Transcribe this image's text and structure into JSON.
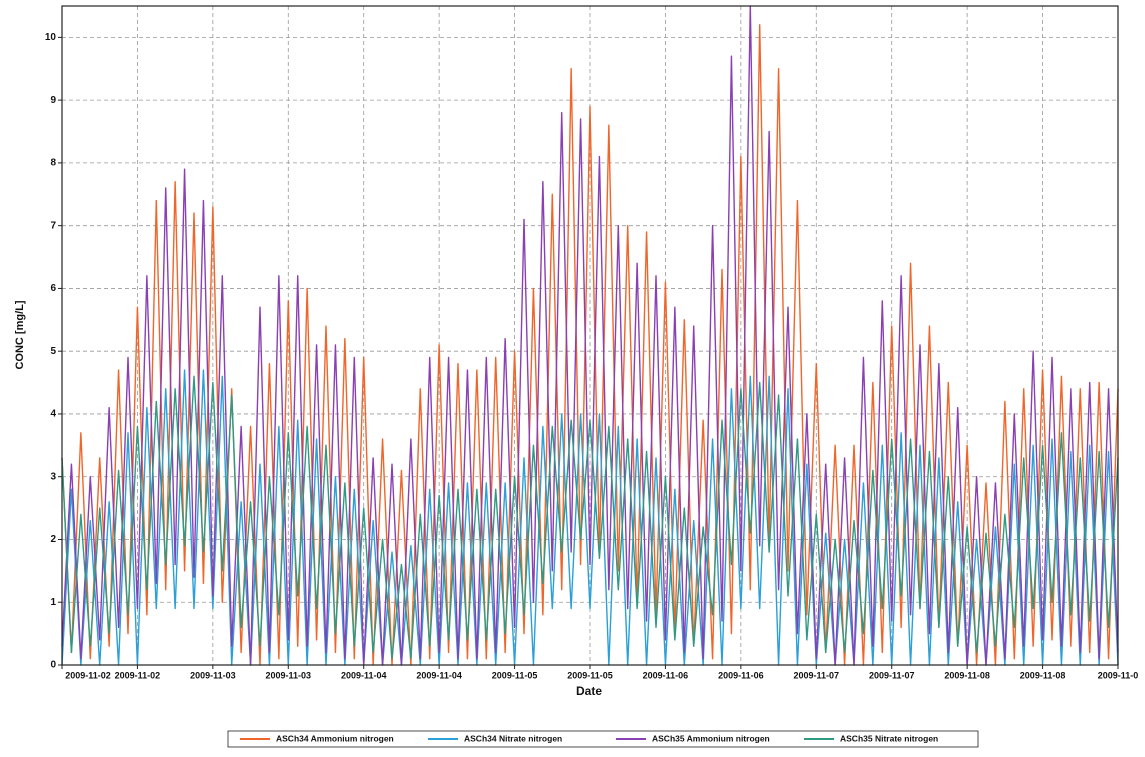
{
  "chart_data": {
    "type": "line",
    "x_label": "Date",
    "y_label": "CONC [mg/L]",
    "categories": [
      "2009-11-02",
      null,
      null,
      null,
      null,
      null,
      null,
      null,
      "2009-11-02",
      null,
      null,
      null,
      null,
      null,
      null,
      null,
      "2009-11-03",
      null,
      null,
      null,
      null,
      null,
      null,
      null,
      "2009-11-03",
      null,
      null,
      null,
      null,
      null,
      null,
      null,
      "2009-11-04",
      null,
      null,
      null,
      null,
      null,
      null,
      null,
      "2009-11-04",
      null,
      null,
      null,
      null,
      null,
      null,
      null,
      "2009-11-05",
      null,
      null,
      null,
      null,
      null,
      null,
      null,
      "2009-11-05",
      null,
      null,
      null,
      null,
      null,
      null,
      null,
      "2009-11-06",
      null,
      null,
      null,
      null,
      null,
      null,
      null,
      "2009-11-06",
      null,
      null,
      null,
      null,
      null,
      null,
      null,
      "2009-11-07",
      null,
      null,
      null,
      null,
      null,
      null,
      null,
      "2009-11-07",
      null,
      null,
      null,
      null,
      null,
      null,
      null,
      "2009-11-08",
      null,
      null,
      null,
      null,
      null,
      null,
      null,
      "2009-11-08",
      null,
      null,
      null,
      null,
      null,
      null,
      null,
      "2009-11-0"
    ],
    "ylim": [
      0,
      10.5
    ],
    "yticks": [
      0,
      1,
      2,
      3,
      4,
      5,
      6,
      7,
      8,
      9,
      10
    ],
    "grid": true,
    "legend": "bottom",
    "series": [
      {
        "name": "ASCh34 Ammonium nitrogen",
        "color": "#f0652a",
        "values": [
          3.3,
          0.2,
          3.7,
          0.1,
          3.3,
          0.3,
          4.7,
          0.5,
          5.7,
          0.8,
          7.4,
          1.2,
          7.7,
          1.5,
          7.2,
          1.3,
          7.3,
          1.0,
          4.4,
          0.2,
          3.8,
          0.0,
          4.8,
          0.1,
          5.8,
          0.3,
          6.0,
          0.4,
          5.4,
          0.2,
          5.2,
          0.1,
          4.9,
          0.0,
          3.6,
          0.0,
          3.1,
          0.0,
          4.4,
          0.1,
          5.1,
          0.2,
          4.8,
          0.1,
          4.7,
          0.1,
          4.9,
          0.2,
          5.0,
          0.5,
          6.0,
          0.8,
          7.5,
          1.2,
          9.5,
          1.6,
          8.9,
          1.8,
          8.6,
          1.5,
          7.0,
          1.0,
          6.9,
          0.8,
          6.1,
          0.5,
          5.5,
          0.3,
          3.9,
          0.1,
          6.3,
          0.5,
          8.1,
          1.2,
          10.2,
          1.9,
          9.5,
          1.5,
          7.4,
          0.8,
          4.8,
          0.2,
          3.5,
          0.0,
          3.5,
          0.0,
          4.5,
          0.2,
          5.4,
          0.6,
          6.4,
          0.9,
          5.4,
          0.6,
          4.5,
          0.3,
          3.5,
          0.0,
          2.9,
          0.0,
          4.2,
          0.1,
          4.4,
          0.3,
          4.7,
          0.4,
          4.6,
          0.3,
          4.4,
          0.2,
          4.5,
          0.1,
          4.4
        ]
      },
      {
        "name": "ASCh34 Nitrate nitrogen",
        "color": "#2a9fd8",
        "values": [
          0.0,
          2.8,
          0.0,
          2.3,
          0.0,
          2.6,
          0.0,
          3.7,
          0.0,
          4.1,
          0.9,
          4.4,
          0.9,
          4.7,
          0.9,
          4.7,
          0.9,
          4.6,
          0.0,
          2.6,
          0.0,
          3.2,
          0.0,
          3.8,
          0.0,
          3.9,
          0.0,
          3.6,
          0.0,
          3.0,
          0.0,
          2.8,
          0.0,
          2.3,
          0.0,
          1.8,
          0.0,
          1.9,
          0.0,
          2.8,
          0.0,
          2.9,
          0.0,
          2.9,
          0.0,
          2.9,
          0.0,
          2.9,
          0.0,
          3.3,
          0.0,
          3.8,
          0.9,
          4.0,
          0.9,
          4.0,
          0.9,
          4.0,
          0.0,
          3.8,
          0.0,
          3.6,
          0.0,
          3.3,
          0.0,
          2.8,
          0.0,
          2.3,
          0.0,
          3.6,
          0.0,
          4.4,
          0.9,
          4.6,
          0.9,
          4.6,
          0.0,
          4.4,
          0.0,
          3.2,
          0.0,
          2.1,
          0.0,
          2.0,
          0.0,
          2.9,
          0.0,
          3.5,
          0.0,
          3.7,
          0.0,
          3.5,
          0.0,
          3.3,
          0.0,
          2.6,
          0.0,
          2.0,
          0.0,
          2.2,
          0.0,
          3.2,
          0.0,
          3.5,
          0.0,
          3.6,
          0.0,
          3.4,
          0.0,
          3.5,
          0.0,
          3.4,
          0.0
        ]
      },
      {
        "name": "ASCh35 Ammonium nitrogen",
        "color": "#8a3fb3",
        "values": [
          0.3,
          3.2,
          0.1,
          3.0,
          0.4,
          4.1,
          0.6,
          4.9,
          0.9,
          6.2,
          1.3,
          7.6,
          1.6,
          7.9,
          1.4,
          7.4,
          1.1,
          6.2,
          0.3,
          3.8,
          0.0,
          5.7,
          0.2,
          6.2,
          0.4,
          6.2,
          0.3,
          5.1,
          0.2,
          5.1,
          0.1,
          4.9,
          0.0,
          3.3,
          0.0,
          3.2,
          0.0,
          3.6,
          0.1,
          4.9,
          0.2,
          4.9,
          0.1,
          4.7,
          0.1,
          4.9,
          0.2,
          5.2,
          0.6,
          7.1,
          1.0,
          7.7,
          1.5,
          8.8,
          1.8,
          8.7,
          1.6,
          8.1,
          1.2,
          7.0,
          0.9,
          6.4,
          0.7,
          6.2,
          0.4,
          5.7,
          0.2,
          5.4,
          0.1,
          7.0,
          0.7,
          9.7,
          1.5,
          10.5,
          1.9,
          8.5,
          1.2,
          5.7,
          0.5,
          4.0,
          0.1,
          3.2,
          0.0,
          3.3,
          0.0,
          4.9,
          0.3,
          5.8,
          0.7,
          6.2,
          0.8,
          5.1,
          0.5,
          4.8,
          0.2,
          4.1,
          0.0,
          3.0,
          0.0,
          2.9,
          0.1,
          4.0,
          0.3,
          5.0,
          0.4,
          4.9,
          0.3,
          4.4,
          0.2,
          4.5,
          0.1,
          4.4,
          0.2
        ]
      },
      {
        "name": "ASCh35 Nitrate nitrogen",
        "color": "#2e9a84",
        "values": [
          3.3,
          0.2,
          2.4,
          0.3,
          2.5,
          0.5,
          3.1,
          0.8,
          3.8,
          1.2,
          4.2,
          1.6,
          4.4,
          1.9,
          4.6,
          1.8,
          4.5,
          1.5,
          4.3,
          0.6,
          2.6,
          0.3,
          3.0,
          0.8,
          3.7,
          1.1,
          3.8,
          0.9,
          3.5,
          0.5,
          2.9,
          0.3,
          2.5,
          0.2,
          2.0,
          0.1,
          1.6,
          0.1,
          2.4,
          0.3,
          2.7,
          0.4,
          2.8,
          0.4,
          2.8,
          0.4,
          2.8,
          0.5,
          3.0,
          0.8,
          3.5,
          1.3,
          3.8,
          1.8,
          3.9,
          2.0,
          3.9,
          1.7,
          3.8,
          1.2,
          3.6,
          0.9,
          3.4,
          0.6,
          3.0,
          0.4,
          2.5,
          0.3,
          2.2,
          0.8,
          3.9,
          1.6,
          4.4,
          2.1,
          4.5,
          1.8,
          4.3,
          1.1,
          3.6,
          0.4,
          2.4,
          0.2,
          2.0,
          0.2,
          2.3,
          0.5,
          3.1,
          0.9,
          3.6,
          1.1,
          3.6,
          0.9,
          3.4,
          0.6,
          3.0,
          0.3,
          2.2,
          0.2,
          2.1,
          0.3,
          2.4,
          0.6,
          3.3,
          0.9,
          3.5,
          1.0,
          3.7,
          0.8,
          3.3,
          0.7,
          3.4,
          0.6,
          3.3
        ]
      }
    ]
  }
}
